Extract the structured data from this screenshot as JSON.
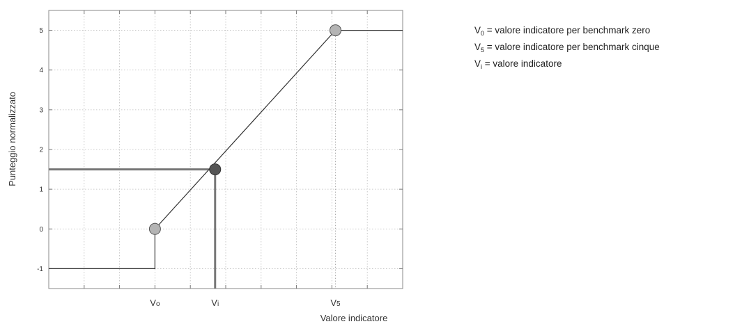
{
  "chart_data": {
    "type": "line",
    "ylabel": "Punteggio normalizzato",
    "xlabel": "Valore indicatore",
    "ylim": [
      -1.5,
      5.5
    ],
    "y_ticks": [
      "-1",
      "0",
      "1",
      "2",
      "3",
      "4",
      "5"
    ],
    "x_range": [
      0,
      10
    ],
    "x_markers": [
      {
        "label": "Vo",
        "x": 3
      },
      {
        "label": "Vi",
        "x": 4.7
      },
      {
        "label": "V5",
        "x": 8.1
      }
    ],
    "series": [
      {
        "points": [
          [
            0,
            -1
          ],
          [
            3,
            -1
          ],
          [
            3,
            0
          ],
          [
            8.1,
            5
          ],
          [
            10,
            5
          ]
        ]
      }
    ],
    "highlight": {
      "x": 4.7,
      "y": 1.5
    },
    "grid": true,
    "colors": {
      "line": "#333333",
      "marker": "#b4b4b4",
      "highlight_marker": "#555555",
      "grid": "#bbbbbb",
      "highlight_line": "#777777"
    }
  },
  "legend": {
    "v0": {
      "symbol": "V",
      "sub": "0",
      "text": " = valore indicatore per benchmark zero"
    },
    "v5": {
      "symbol": "V",
      "sub": "5",
      "text": " = valore indicatore per benchmark cinque"
    },
    "vi": {
      "symbol": "V",
      "sub": "i",
      "text": " = valore indicatore"
    }
  }
}
